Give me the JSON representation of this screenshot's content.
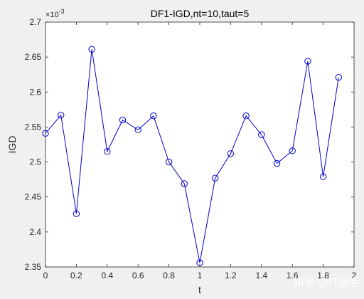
{
  "chart_data": {
    "type": "line",
    "title": "DF1-IGD,nt=10,taut=5",
    "xlabel": "t",
    "ylabel": "IGD",
    "y_exponent_label": "×10^-3",
    "xlim": [
      0,
      2
    ],
    "ylim": [
      2.35,
      2.7
    ],
    "x_ticks": [
      "0",
      "0.2",
      "0.4",
      "0.6",
      "0.8",
      "1",
      "1.2",
      "1.4",
      "1.6",
      "1.8",
      "2"
    ],
    "y_ticks": [
      "2.35",
      "2.4",
      "2.45",
      "2.5",
      "2.55",
      "2.6",
      "2.65",
      "2.7"
    ],
    "grid": false,
    "marker": "circle",
    "line_color": "#0000cd",
    "series": [
      {
        "x": [
          0,
          0.1,
          0.2,
          0.3,
          0.4,
          0.5,
          0.6,
          0.7,
          0.8,
          0.9,
          1.0,
          1.1,
          1.2,
          1.3,
          1.4,
          1.5,
          1.6,
          1.7,
          1.8,
          1.9
        ],
        "values": [
          2.541,
          2.567,
          2.426,
          2.661,
          2.515,
          2.56,
          2.546,
          2.566,
          2.5,
          2.469,
          2.356,
          2.477,
          2.512,
          2.566,
          2.539,
          2.498,
          2.516,
          2.644,
          2.479,
          2.621
        ]
      }
    ]
  },
  "watermark": "知乎 @IT猿手"
}
